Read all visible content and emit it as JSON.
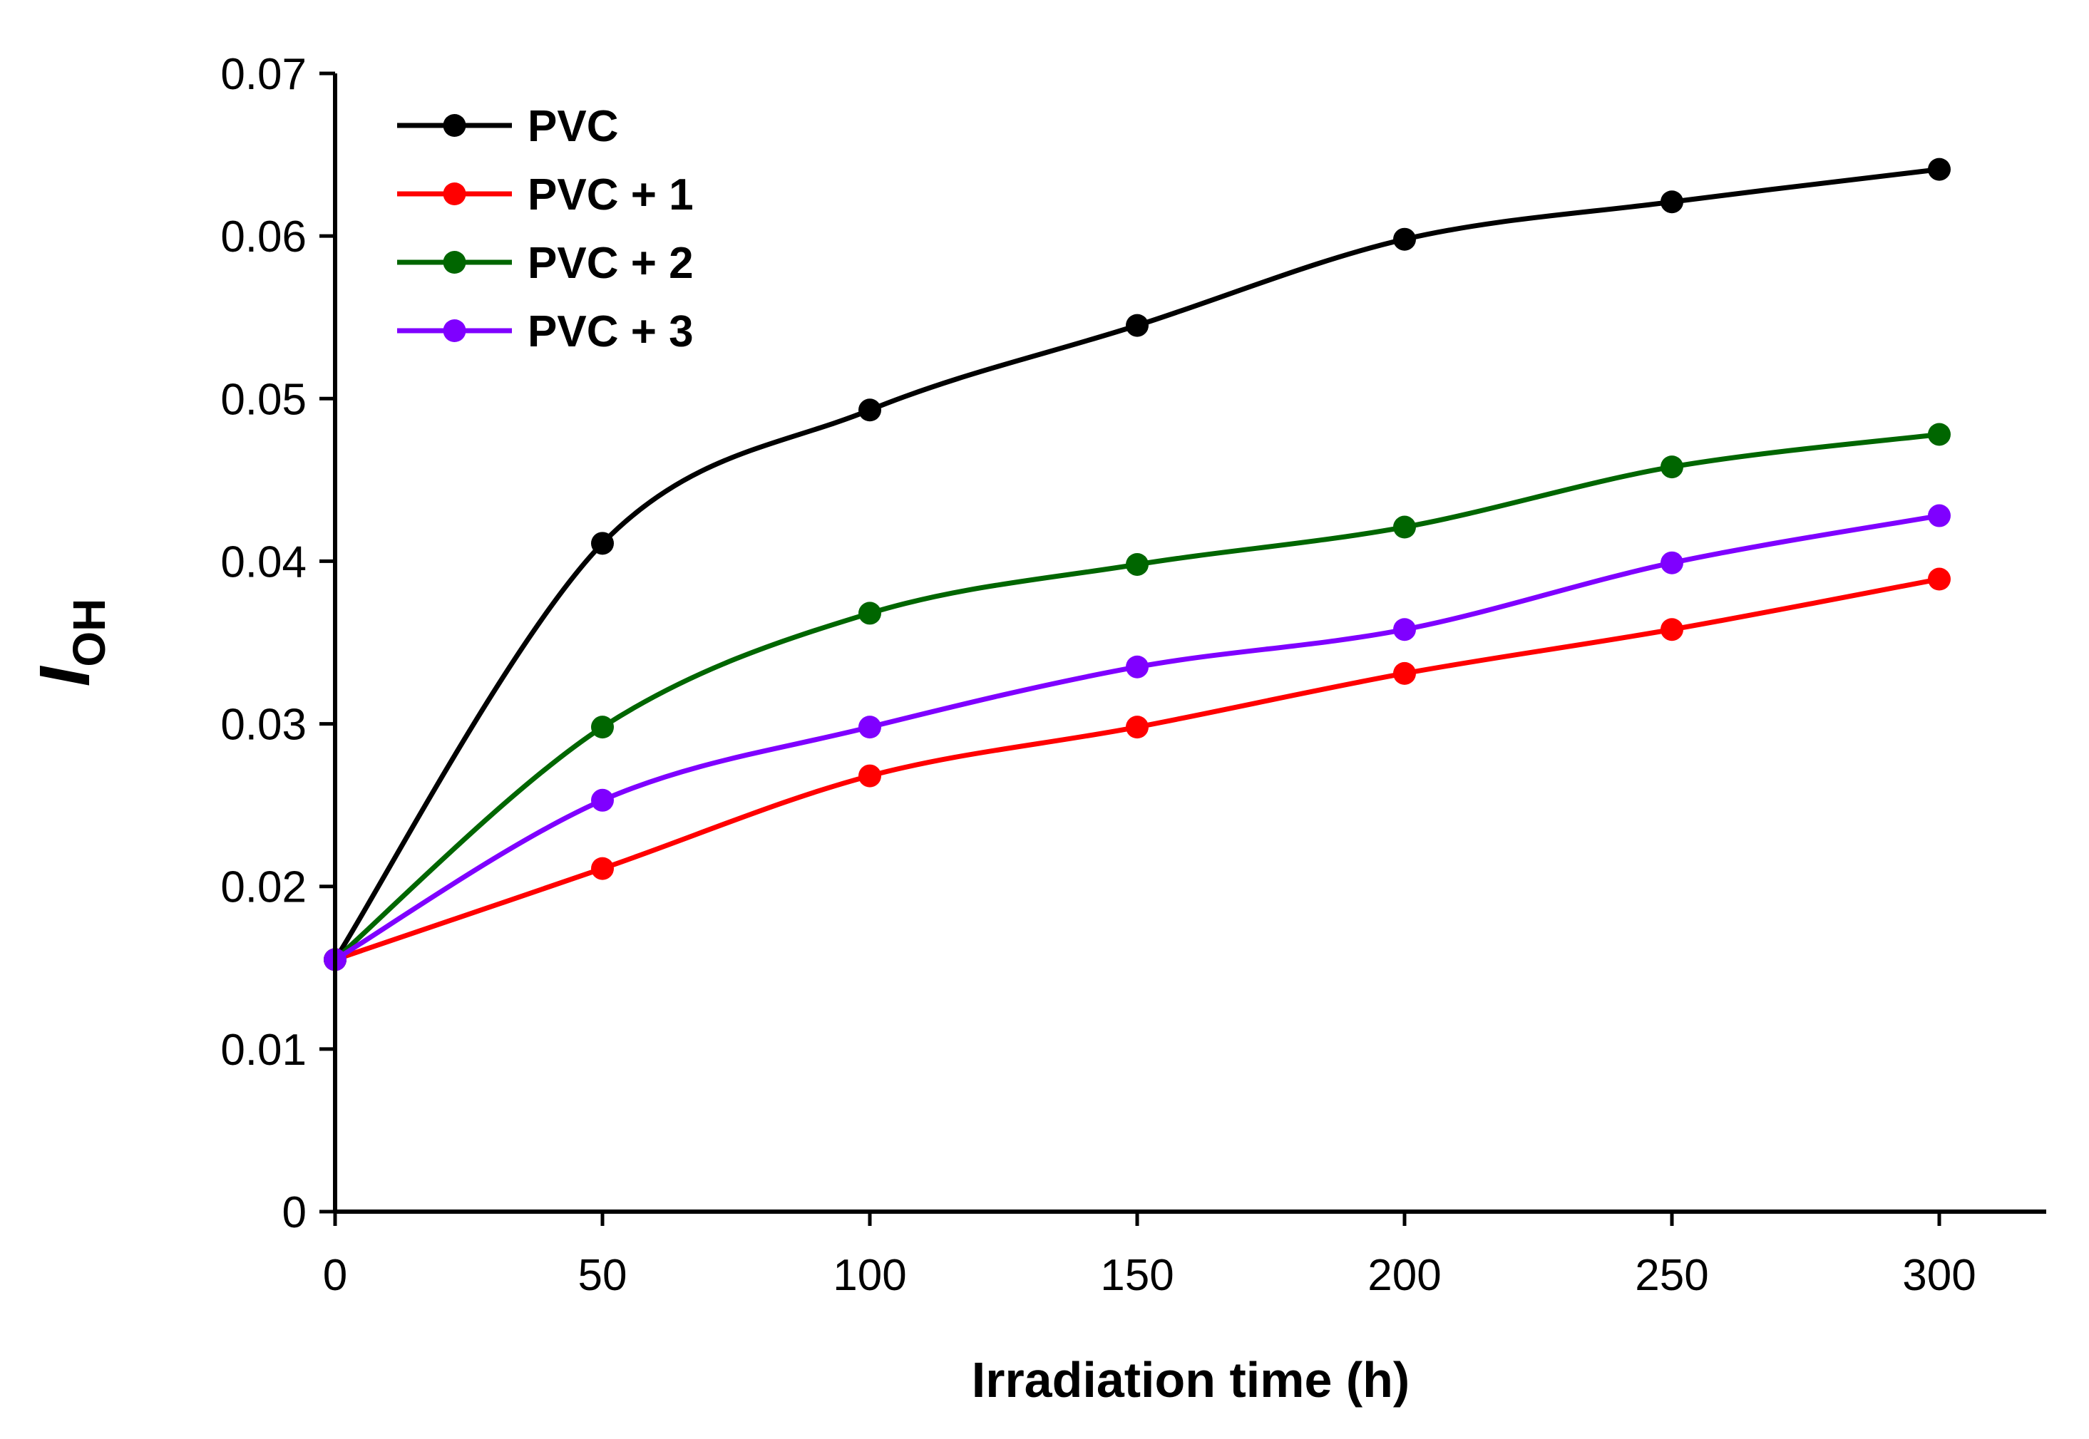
{
  "chart_data": {
    "type": "line",
    "title": "",
    "xlabel": "Irradiation time (h)",
    "ylabel": "I",
    "ylabel_subscript": "OH",
    "x": [
      0,
      50,
      100,
      150,
      200,
      250,
      300
    ],
    "xlim": [
      0,
      320
    ],
    "ylim": [
      0,
      0.07
    ],
    "x_ticks": [
      0,
      50,
      100,
      150,
      200,
      250,
      300
    ],
    "x_tick_labels": [
      "0",
      "50",
      "100",
      "150",
      "200",
      "250",
      "300"
    ],
    "y_ticks": [
      0,
      0.01,
      0.02,
      0.03,
      0.04,
      0.05,
      0.06,
      0.07
    ],
    "y_tick_labels": [
      "0",
      "0.01",
      "0.02",
      "0.03",
      "0.04",
      "0.05",
      "0.06",
      "0.07"
    ],
    "grid": false,
    "legend_position": "top-left",
    "series": [
      {
        "name": "PVC",
        "color": "#000000",
        "values": [
          0.0155,
          0.0411,
          0.0493,
          0.0545,
          0.0598,
          0.0621,
          0.0641
        ]
      },
      {
        "name": "PVC + 1",
        "color": "#ff0000",
        "values": [
          0.0155,
          0.0211,
          0.0268,
          0.0298,
          0.0331,
          0.0358,
          0.0389
        ]
      },
      {
        "name": "PVC + 2",
        "color": "#006600",
        "values": [
          0.0155,
          0.0298,
          0.0368,
          0.0398,
          0.0421,
          0.0458,
          0.0478
        ]
      },
      {
        "name": "PVC + 3",
        "color": "#7f00ff",
        "values": [
          0.0155,
          0.0253,
          0.0298,
          0.0335,
          0.0358,
          0.0399,
          0.0428
        ]
      }
    ]
  }
}
